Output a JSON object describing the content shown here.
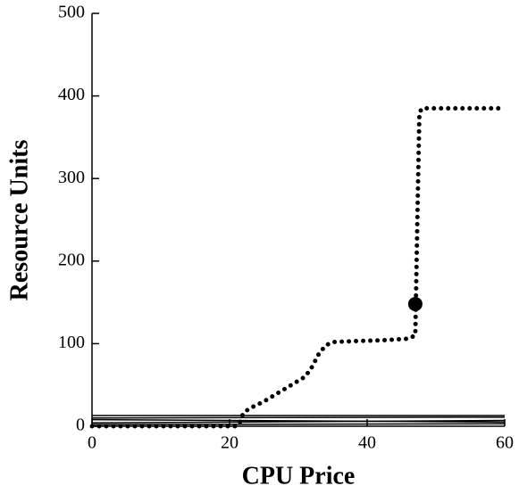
{
  "chart_data": {
    "type": "line",
    "x_label": "CPU Price",
    "y_label": "Resource Units",
    "xlim": [
      0,
      60
    ],
    "ylim": [
      0,
      500
    ],
    "xticks": [
      0,
      20,
      40,
      60
    ],
    "yticks": [
      0,
      100,
      200,
      300,
      400,
      500
    ],
    "series": [
      {
        "color": "#000000",
        "style": "dotted",
        "x": [
          0,
          10,
          21,
          21.5,
          22,
          23,
          25,
          27,
          28,
          30,
          31,
          32,
          33,
          34,
          35,
          38,
          42,
          46,
          47,
          47.3,
          47.6,
          48,
          60
        ],
        "values": [
          0,
          0,
          0,
          5,
          16,
          22,
          30,
          40,
          45,
          55,
          60,
          72,
          88,
          98,
          102,
          103,
          104,
          106,
          110,
          250,
          380,
          385,
          385
        ]
      },
      {
        "color": "#000000",
        "style": "solid",
        "x": [
          0,
          60
        ],
        "values": [
          13,
          13
        ]
      },
      {
        "color": "#000000",
        "style": "solid",
        "x": [
          0,
          60
        ],
        "values": [
          10,
          11
        ]
      },
      {
        "color": "#000000",
        "style": "solid",
        "x": [
          0,
          60
        ],
        "values": [
          8,
          5
        ]
      },
      {
        "color": "#000000",
        "style": "solid",
        "x": [
          0,
          60
        ],
        "values": [
          4,
          7
        ]
      },
      {
        "color": "#000000",
        "style": "solid",
        "x": [
          0,
          60
        ],
        "values": [
          2,
          3
        ]
      }
    ],
    "marker": {
      "x": 47,
      "y": 148,
      "color": "#000000"
    }
  }
}
